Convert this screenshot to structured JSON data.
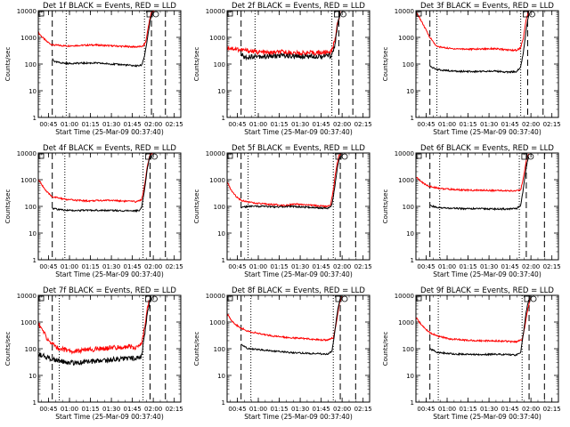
{
  "chart_data": {
    "type": "line",
    "ylabel": "Counts/sec",
    "xlabel": "Start Time (25-Mar-09 00:37:40)",
    "yscale": "log",
    "ylim": [
      1,
      10000
    ],
    "y_ticks": [
      "1",
      "10",
      "100",
      "1000",
      "10000"
    ],
    "x_unit": "minutes after 00:37:40",
    "xlim": [
      0,
      102
    ],
    "x_ticks": [
      {
        "value": 7.33,
        "label": "00:45"
      },
      {
        "value": 22.33,
        "label": "01:00"
      },
      {
        "value": 37.33,
        "label": "01:15"
      },
      {
        "value": 52.33,
        "label": "01:30"
      },
      {
        "value": 67.33,
        "label": "01:45"
      },
      {
        "value": 82.33,
        "label": "02:00"
      },
      {
        "value": 97.33,
        "label": "02:15"
      }
    ],
    "series_colors": {
      "events": "#000000",
      "lld": "#ff0000"
    },
    "panels": [
      {
        "title": "Det 1f BLACK = Events, RED = LLD",
        "markers": {
          "dashed": [
            10,
            81,
            91
          ],
          "dotted": [
            20,
            76
          ]
        },
        "lld": [
          [
            0,
            1500
          ],
          [
            3,
            1000
          ],
          [
            6,
            700
          ],
          [
            10,
            520
          ],
          [
            20,
            480
          ],
          [
            40,
            520
          ],
          [
            60,
            460
          ],
          [
            70,
            440
          ],
          [
            75,
            460
          ],
          [
            77,
            700
          ],
          [
            79,
            3000
          ],
          [
            81,
            9000
          ],
          [
            83,
            10000
          ]
        ],
        "events": [
          [
            10,
            160
          ],
          [
            12,
            120
          ],
          [
            20,
            105
          ],
          [
            40,
            110
          ],
          [
            60,
            95
          ],
          [
            70,
            85
          ],
          [
            74,
            90
          ],
          [
            76,
            200
          ],
          [
            78,
            800
          ],
          [
            80,
            4000
          ],
          [
            82,
            10000
          ]
        ]
      },
      {
        "title": "Det 2f BLACK = Events, RED = LLD",
        "markers": {
          "dashed": [
            10,
            80,
            90
          ],
          "dotted": [
            20,
            75
          ]
        },
        "lld": [
          [
            0,
            420
          ],
          [
            5,
            380
          ],
          [
            10,
            340
          ],
          [
            20,
            290
          ],
          [
            30,
            260
          ],
          [
            40,
            280
          ],
          [
            50,
            250
          ],
          [
            60,
            260
          ],
          [
            70,
            270
          ],
          [
            75,
            300
          ],
          [
            77,
            800
          ],
          [
            79,
            3000
          ],
          [
            81,
            9000
          ]
        ],
        "events": [
          [
            10,
            250
          ],
          [
            12,
            180
          ],
          [
            20,
            200
          ],
          [
            30,
            190
          ],
          [
            40,
            210
          ],
          [
            50,
            190
          ],
          [
            60,
            200
          ],
          [
            70,
            200
          ],
          [
            75,
            210
          ],
          [
            77,
            500
          ],
          [
            79,
            2500
          ],
          [
            81,
            8000
          ]
        ]
      },
      {
        "title": "Det 3f BLACK = Events, RED = LLD",
        "markers": {
          "dashed": [
            10,
            80,
            91
          ],
          "dotted": [
            15,
            75
          ]
        },
        "lld": [
          [
            0,
            9000
          ],
          [
            3,
            5000
          ],
          [
            6,
            2500
          ],
          [
            10,
            1000
          ],
          [
            15,
            450
          ],
          [
            25,
            380
          ],
          [
            40,
            360
          ],
          [
            55,
            380
          ],
          [
            65,
            340
          ],
          [
            72,
            330
          ],
          [
            75,
            400
          ],
          [
            77,
            1000
          ],
          [
            79,
            5000
          ],
          [
            81,
            10000
          ]
        ],
        "events": [
          [
            10,
            80
          ],
          [
            15,
            62
          ],
          [
            25,
            55
          ],
          [
            40,
            52
          ],
          [
            55,
            55
          ],
          [
            65,
            50
          ],
          [
            72,
            52
          ],
          [
            75,
            80
          ],
          [
            77,
            300
          ],
          [
            79,
            2000
          ],
          [
            81,
            9000
          ]
        ]
      },
      {
        "title": "Det 4f BLACK = Events, RED = LLD",
        "markers": {
          "dashed": [
            10,
            80,
            91
          ],
          "dotted": [
            19,
            75
          ]
        },
        "lld": [
          [
            0,
            1000
          ],
          [
            3,
            600
          ],
          [
            6,
            350
          ],
          [
            10,
            230
          ],
          [
            20,
            180
          ],
          [
            35,
            160
          ],
          [
            50,
            170
          ],
          [
            60,
            160
          ],
          [
            70,
            150
          ],
          [
            74,
            180
          ],
          [
            76,
            600
          ],
          [
            78,
            3000
          ],
          [
            80,
            9000
          ],
          [
            82,
            10000
          ]
        ],
        "events": [
          [
            10,
            85
          ],
          [
            15,
            75
          ],
          [
            25,
            70
          ],
          [
            40,
            72
          ],
          [
            55,
            70
          ],
          [
            65,
            68
          ],
          [
            72,
            70
          ],
          [
            74,
            90
          ],
          [
            76,
            400
          ],
          [
            78,
            2500
          ],
          [
            80,
            8000
          ]
        ]
      },
      {
        "title": "Det 5f BLACK = Events, RED = LLD",
        "markers": {
          "dashed": [
            10,
            81,
            92
          ],
          "dotted": [
            15,
            76
          ]
        },
        "lld": [
          [
            0,
            800
          ],
          [
            3,
            400
          ],
          [
            6,
            250
          ],
          [
            10,
            170
          ],
          [
            20,
            130
          ],
          [
            30,
            120
          ],
          [
            40,
            110
          ],
          [
            50,
            120
          ],
          [
            60,
            110
          ],
          [
            70,
            100
          ],
          [
            74,
            110
          ],
          [
            76,
            400
          ],
          [
            78,
            2500
          ],
          [
            80,
            8000
          ],
          [
            82,
            10000
          ]
        ],
        "events": [
          [
            10,
            90
          ],
          [
            15,
            100
          ],
          [
            25,
            100
          ],
          [
            35,
            95
          ],
          [
            45,
            100
          ],
          [
            55,
            95
          ],
          [
            65,
            88
          ],
          [
            72,
            85
          ],
          [
            75,
            110
          ],
          [
            77,
            500
          ],
          [
            79,
            3000
          ],
          [
            81,
            9000
          ]
        ]
      },
      {
        "title": "Det 6f BLACK = Events, RED = LLD",
        "markers": {
          "dashed": [
            10,
            79,
            92
          ],
          "dotted": [
            17,
            74
          ]
        },
        "lld": [
          [
            0,
            1300
          ],
          [
            3,
            900
          ],
          [
            6,
            700
          ],
          [
            10,
            550
          ],
          [
            20,
            450
          ],
          [
            30,
            420
          ],
          [
            40,
            400
          ],
          [
            50,
            400
          ],
          [
            60,
            390
          ],
          [
            70,
            380
          ],
          [
            75,
            420
          ],
          [
            77,
            1200
          ],
          [
            79,
            5000
          ],
          [
            81,
            10000
          ]
        ],
        "events": [
          [
            10,
            110
          ],
          [
            15,
            90
          ],
          [
            25,
            85
          ],
          [
            35,
            82
          ],
          [
            45,
            82
          ],
          [
            55,
            80
          ],
          [
            65,
            80
          ],
          [
            72,
            82
          ],
          [
            75,
            110
          ],
          [
            77,
            500
          ],
          [
            79,
            3000
          ],
          [
            81,
            9000
          ]
        ]
      },
      {
        "title": "Det 7f BLACK = Events, RED = LLD",
        "markers": {
          "dashed": [
            10,
            80,
            91
          ],
          "dotted": [
            15,
            75
          ]
        },
        "lld": [
          [
            0,
            900
          ],
          [
            3,
            500
          ],
          [
            6,
            250
          ],
          [
            10,
            150
          ],
          [
            15,
            100
          ],
          [
            25,
            80
          ],
          [
            35,
            90
          ],
          [
            45,
            100
          ],
          [
            55,
            110
          ],
          [
            65,
            120
          ],
          [
            70,
            110
          ],
          [
            74,
            150
          ],
          [
            76,
            600
          ],
          [
            78,
            3000
          ],
          [
            80,
            8000
          ]
        ],
        "events": [
          [
            0,
            60
          ],
          [
            6,
            50
          ],
          [
            10,
            40
          ],
          [
            15,
            35
          ],
          [
            25,
            30
          ],
          [
            35,
            32
          ],
          [
            45,
            35
          ],
          [
            55,
            40
          ],
          [
            65,
            45
          ],
          [
            70,
            42
          ],
          [
            74,
            55
          ],
          [
            76,
            300
          ],
          [
            78,
            2000
          ],
          [
            80,
            7000
          ]
        ]
      },
      {
        "title": "Det 8f BLACK = Events, RED = LLD",
        "markers": {
          "dashed": [
            10,
            81,
            92
          ],
          "dotted": [
            17,
            76
          ]
        },
        "lld": [
          [
            0,
            2000
          ],
          [
            3,
            1200
          ],
          [
            6,
            800
          ],
          [
            10,
            600
          ],
          [
            15,
            450
          ],
          [
            25,
            350
          ],
          [
            35,
            290
          ],
          [
            45,
            260
          ],
          [
            55,
            240
          ],
          [
            65,
            220
          ],
          [
            72,
            210
          ],
          [
            76,
            260
          ],
          [
            78,
            800
          ],
          [
            80,
            4000
          ],
          [
            82,
            9000
          ]
        ],
        "events": [
          [
            10,
            140
          ],
          [
            15,
            100
          ],
          [
            25,
            90
          ],
          [
            35,
            80
          ],
          [
            45,
            72
          ],
          [
            55,
            68
          ],
          [
            65,
            65
          ],
          [
            72,
            62
          ],
          [
            75,
            80
          ],
          [
            77,
            400
          ],
          [
            79,
            2500
          ],
          [
            81,
            8000
          ]
        ]
      },
      {
        "title": "Det 9f BLACK = Events, RED = LLD",
        "markers": {
          "dashed": [
            10,
            81,
            92
          ],
          "dotted": [
            16,
            76
          ]
        },
        "lld": [
          [
            0,
            1500
          ],
          [
            3,
            900
          ],
          [
            6,
            600
          ],
          [
            10,
            400
          ],
          [
            15,
            300
          ],
          [
            25,
            230
          ],
          [
            35,
            210
          ],
          [
            45,
            200
          ],
          [
            55,
            200
          ],
          [
            65,
            190
          ],
          [
            72,
            180
          ],
          [
            76,
            220
          ],
          [
            78,
            700
          ],
          [
            80,
            3000
          ],
          [
            82,
            9000
          ]
        ],
        "events": [
          [
            10,
            100
          ],
          [
            15,
            75
          ],
          [
            25,
            65
          ],
          [
            35,
            62
          ],
          [
            45,
            60
          ],
          [
            55,
            62
          ],
          [
            65,
            60
          ],
          [
            72,
            58
          ],
          [
            75,
            75
          ],
          [
            77,
            400
          ],
          [
            79,
            2500
          ],
          [
            81,
            8000
          ]
        ]
      }
    ]
  }
}
